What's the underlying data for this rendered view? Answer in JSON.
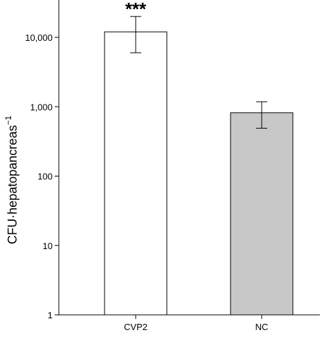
{
  "chart_data": {
    "type": "bar",
    "yscale": "log",
    "categories": [
      "CVP2",
      "NC"
    ],
    "values": [
      12000,
      820
    ],
    "error_low": [
      6000,
      490
    ],
    "error_high": [
      20000,
      1180
    ],
    "bar_colors": [
      "#ffffff",
      "#c8c8c8"
    ],
    "annotations": [
      "***",
      ""
    ],
    "ylabel": "CFU·hepatopancreas",
    "ylabel_sup": "−1",
    "ylim": [
      1,
      20000
    ],
    "yticks": [
      1,
      10,
      100,
      1000,
      10000
    ],
    "ytick_labels": [
      "1",
      "10",
      "100",
      "1,000",
      "10,000"
    ],
    "grid": false
  }
}
